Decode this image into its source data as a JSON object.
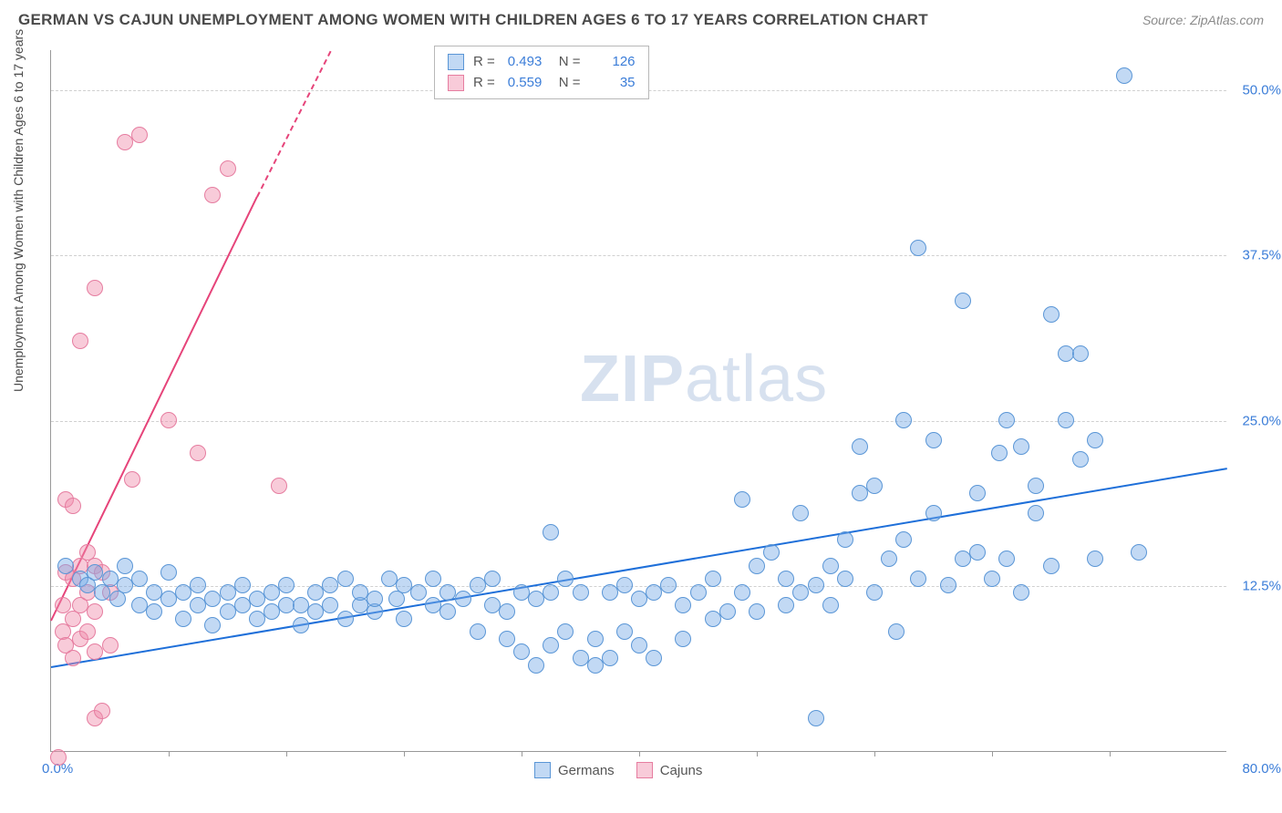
{
  "header": {
    "title": "GERMAN VS CAJUN UNEMPLOYMENT AMONG WOMEN WITH CHILDREN AGES 6 TO 17 YEARS CORRELATION CHART",
    "source": "Source: ZipAtlas.com"
  },
  "chart": {
    "type": "scatter",
    "ylabel": "Unemployment Among Women with Children Ages 6 to 17 years",
    "xlim": [
      0,
      80
    ],
    "ylim": [
      0,
      53
    ],
    "xtick_labels": {
      "0": "0.0%",
      "80": "80.0%"
    },
    "ytick_labels": {
      "12.5": "12.5%",
      "25": "25.0%",
      "37.5": "37.5%",
      "50": "50.0%"
    },
    "yticks": [
      12.5,
      25,
      37.5,
      50
    ],
    "xticks_minor": [
      8,
      16,
      24,
      32,
      40,
      48,
      56,
      64,
      72
    ],
    "background_color": "#ffffff",
    "grid_color": "#d0d0d0",
    "point_radius": 9,
    "series": {
      "germans": {
        "label": "Germans",
        "fill": "rgba(120,170,230,0.45)",
        "stroke": "#5a96d6",
        "trend_color": "#1e6fd9",
        "trend": {
          "x1": 0,
          "y1": 6.5,
          "x2": 80,
          "y2": 21.5
        },
        "points": [
          [
            1,
            14
          ],
          [
            2,
            13
          ],
          [
            2.5,
            12.5
          ],
          [
            3,
            13.5
          ],
          [
            3.5,
            12
          ],
          [
            4,
            13
          ],
          [
            4.5,
            11.5
          ],
          [
            5,
            12.5
          ],
          [
            5,
            14
          ],
          [
            6,
            11
          ],
          [
            6,
            13
          ],
          [
            7,
            12
          ],
          [
            7,
            10.5
          ],
          [
            8,
            11.5
          ],
          [
            8,
            13.5
          ],
          [
            9,
            10
          ],
          [
            9,
            12
          ],
          [
            10,
            11
          ],
          [
            10,
            12.5
          ],
          [
            11,
            9.5
          ],
          [
            11,
            11.5
          ],
          [
            12,
            12
          ],
          [
            12,
            10.5
          ],
          [
            13,
            11
          ],
          [
            13,
            12.5
          ],
          [
            14,
            10
          ],
          [
            14,
            11.5
          ],
          [
            15,
            12
          ],
          [
            15,
            10.5
          ],
          [
            16,
            11
          ],
          [
            16,
            12.5
          ],
          [
            17,
            9.5
          ],
          [
            17,
            11
          ],
          [
            18,
            10.5
          ],
          [
            18,
            12
          ],
          [
            19,
            11
          ],
          [
            19,
            12.5
          ],
          [
            20,
            10
          ],
          [
            20,
            13
          ],
          [
            21,
            11
          ],
          [
            21,
            12
          ],
          [
            22,
            10.5
          ],
          [
            22,
            11.5
          ],
          [
            23,
            13
          ],
          [
            23.5,
            11.5
          ],
          [
            24,
            12.5
          ],
          [
            24,
            10
          ],
          [
            25,
            12
          ],
          [
            26,
            11
          ],
          [
            26,
            13
          ],
          [
            27,
            10.5
          ],
          [
            27,
            12
          ],
          [
            28,
            11.5
          ],
          [
            29,
            9
          ],
          [
            29,
            12.5
          ],
          [
            30,
            11
          ],
          [
            30,
            13
          ],
          [
            31,
            8.5
          ],
          [
            31,
            10.5
          ],
          [
            32,
            12
          ],
          [
            32,
            7.5
          ],
          [
            33,
            11.5
          ],
          [
            33,
            6.5
          ],
          [
            34,
            8
          ],
          [
            34,
            12
          ],
          [
            35,
            9
          ],
          [
            35,
            13
          ],
          [
            36,
            7
          ],
          [
            36,
            12
          ],
          [
            37,
            8.5
          ],
          [
            37,
            6.5
          ],
          [
            38,
            12
          ],
          [
            38,
            7
          ],
          [
            39,
            12.5
          ],
          [
            39,
            9
          ],
          [
            40,
            11.5
          ],
          [
            40,
            8
          ],
          [
            41,
            7
          ],
          [
            41,
            12
          ],
          [
            42,
            12.5
          ],
          [
            43,
            11
          ],
          [
            43,
            8.5
          ],
          [
            44,
            12
          ],
          [
            45,
            10
          ],
          [
            45,
            13
          ],
          [
            34,
            16.5
          ],
          [
            46,
            10.5
          ],
          [
            47,
            12
          ],
          [
            47,
            19
          ],
          [
            48,
            10.5
          ],
          [
            48,
            14
          ],
          [
            49,
            15
          ],
          [
            50,
            11
          ],
          [
            50,
            13
          ],
          [
            51,
            12
          ],
          [
            51,
            18
          ],
          [
            52,
            2.5
          ],
          [
            52,
            12.5
          ],
          [
            53,
            11
          ],
          [
            53,
            14
          ],
          [
            54,
            13
          ],
          [
            54,
            16
          ],
          [
            55,
            19.5
          ],
          [
            55,
            23
          ],
          [
            56,
            12
          ],
          [
            56,
            20
          ],
          [
            57,
            14.5
          ],
          [
            57.5,
            9
          ],
          [
            58,
            16
          ],
          [
            58,
            25
          ],
          [
            59,
            13
          ],
          [
            59,
            38
          ],
          [
            60,
            18
          ],
          [
            60,
            23.5
          ],
          [
            61,
            12.5
          ],
          [
            62,
            14.5
          ],
          [
            62,
            34
          ],
          [
            63,
            15
          ],
          [
            63,
            19.5
          ],
          [
            64,
            13
          ],
          [
            64.5,
            22.5
          ],
          [
            65,
            25
          ],
          [
            65,
            14.5
          ],
          [
            66,
            12
          ],
          [
            66,
            23
          ],
          [
            67,
            20
          ],
          [
            67,
            18
          ],
          [
            68,
            33
          ],
          [
            68,
            14
          ],
          [
            69,
            30
          ],
          [
            69,
            25
          ],
          [
            70,
            30
          ],
          [
            70,
            22
          ],
          [
            71,
            14.5
          ],
          [
            71,
            23.5
          ],
          [
            73,
            51
          ],
          [
            74,
            15
          ]
        ]
      },
      "cajuns": {
        "label": "Cajuns",
        "fill": "rgba(240,140,170,0.45)",
        "stroke": "#e67da0",
        "trend_color": "#e6447a",
        "trend_solid": {
          "x1": 0,
          "y1": 10,
          "x2": 14,
          "y2": 42
        },
        "trend_dash": {
          "x1": 14,
          "y1": 42,
          "x2": 19,
          "y2": 53
        },
        "points": [
          [
            0.5,
            -0.5
          ],
          [
            0.8,
            9
          ],
          [
            0.8,
            11
          ],
          [
            1,
            8
          ],
          [
            1,
            13.5
          ],
          [
            1,
            19
          ],
          [
            1.5,
            7
          ],
          [
            1.5,
            10
          ],
          [
            1.5,
            13
          ],
          [
            1.5,
            18.5
          ],
          [
            2,
            8.5
          ],
          [
            2,
            11
          ],
          [
            2,
            14
          ],
          [
            2,
            31
          ],
          [
            2.5,
            9
          ],
          [
            2.5,
            12
          ],
          [
            2.5,
            15
          ],
          [
            3,
            7.5
          ],
          [
            3,
            10.5
          ],
          [
            3,
            14
          ],
          [
            3,
            35
          ],
          [
            3,
            2.5
          ],
          [
            3.5,
            3
          ],
          [
            3.5,
            13.5
          ],
          [
            4,
            8
          ],
          [
            4,
            12
          ],
          [
            5,
            46
          ],
          [
            5.5,
            20.5
          ],
          [
            6,
            46.5
          ],
          [
            8,
            25
          ],
          [
            10,
            22.5
          ],
          [
            11,
            42
          ],
          [
            12,
            44
          ],
          [
            15.5,
            20
          ]
        ]
      }
    },
    "legend_top": [
      {
        "swatch_fill": "rgba(120,170,230,0.45)",
        "swatch_stroke": "#5a96d6",
        "r": "0.493",
        "n": "126"
      },
      {
        "swatch_fill": "rgba(240,140,170,0.45)",
        "swatch_stroke": "#e67da0",
        "r": "0.559",
        "n": "35"
      }
    ],
    "legend_bottom": [
      {
        "swatch_fill": "rgba(120,170,230,0.45)",
        "swatch_stroke": "#5a96d6",
        "label": "Germans"
      },
      {
        "swatch_fill": "rgba(240,140,170,0.45)",
        "swatch_stroke": "#e67da0",
        "label": "Cajuns"
      }
    ],
    "watermark": {
      "bold": "ZIP",
      "light": "atlas"
    }
  }
}
